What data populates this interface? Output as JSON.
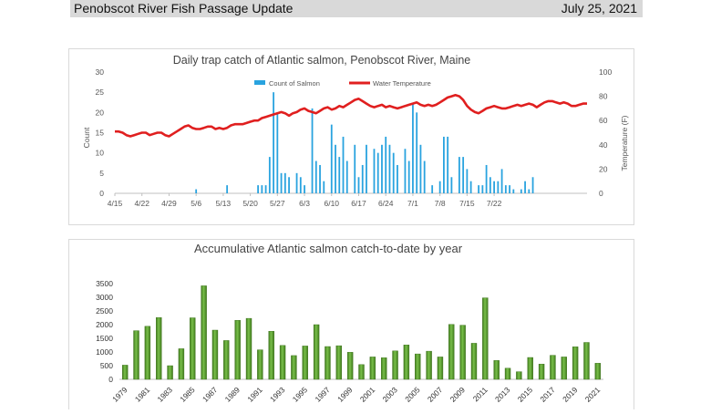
{
  "header": {
    "title": "Penobscot River Fish Passage Update",
    "date": "July 25, 2021"
  },
  "colors": {
    "salmon_bars": "#29a3df",
    "temperature_line": "#e01f1f",
    "yearly_bars": "#5a9e2f",
    "banner": "#d9d9d9"
  },
  "chart_data": [
    {
      "type": "bar",
      "title": "Daily trap catch of Atlantic salmon, Penobscot River, Maine",
      "ylabel": "Count",
      "y2label": "Temperature (F)",
      "ylim": [
        0,
        30
      ],
      "y2lim": [
        0,
        100
      ],
      "yticks": [
        "0",
        "5",
        "10",
        "15",
        "20",
        "25",
        "30"
      ],
      "y2ticks": [
        "0",
        "20",
        "40",
        "60",
        "80",
        "100"
      ],
      "xtick_labels": [
        "4/15",
        "4/22",
        "4/29",
        "5/6",
        "5/13",
        "5/20",
        "5/27",
        "6/3",
        "6/10",
        "6/17",
        "6/24",
        "7/1",
        "7/8",
        "7/15",
        "7/22"
      ],
      "legend": [
        "Count of Salmon",
        "Water Temperature"
      ],
      "legend_position": "top-center",
      "start_date": "4/15",
      "series": [
        {
          "name": "Count of Salmon",
          "kind": "bar",
          "values": [
            0,
            0,
            0,
            0,
            0,
            0,
            0,
            0,
            0,
            0,
            0,
            0,
            0,
            0,
            0,
            0,
            0,
            0,
            0,
            0,
            0,
            1,
            0,
            0,
            0,
            0,
            0,
            0,
            0,
            2,
            0,
            0,
            0,
            0,
            0,
            0,
            0,
            2,
            2,
            2,
            9,
            25,
            20,
            5,
            5,
            4,
            0,
            5,
            4,
            2,
            0,
            21,
            8,
            7,
            3,
            0,
            17,
            12,
            9,
            14,
            8,
            0,
            12,
            4,
            7,
            12,
            0,
            11,
            10,
            12,
            14,
            12,
            10,
            7,
            0,
            11,
            8,
            22,
            20,
            12,
            8,
            0,
            2,
            0,
            3,
            14,
            14,
            4,
            0,
            9,
            9,
            6,
            3,
            0,
            2,
            2,
            7,
            4,
            3,
            3,
            6,
            2,
            2,
            1,
            0,
            1,
            3,
            1,
            4
          ]
        },
        {
          "name": "Water Temperature",
          "kind": "line",
          "axis": "right",
          "values": [
            51,
            51,
            50,
            48,
            47,
            48,
            49,
            50,
            50,
            48,
            49,
            50,
            50,
            48,
            47,
            49,
            51,
            53,
            55,
            56,
            54,
            53,
            53,
            54,
            55,
            55,
            53,
            54,
            53,
            54,
            56,
            57,
            57,
            57,
            58,
            59,
            60,
            60,
            62,
            63,
            64,
            65,
            66,
            67,
            66,
            64,
            66,
            67,
            69,
            70,
            68,
            67,
            66,
            68,
            70,
            71,
            69,
            70,
            72,
            71,
            73,
            75,
            77,
            78,
            76,
            74,
            72,
            71,
            72,
            73,
            71,
            72,
            71,
            70,
            71,
            72,
            73,
            74,
            75,
            73,
            72,
            73,
            72,
            73,
            75,
            77,
            79,
            80,
            81,
            80,
            77,
            72,
            69,
            67,
            66,
            68,
            70,
            71,
            72,
            71,
            70,
            70,
            71,
            72,
            73,
            72,
            73,
            74,
            73,
            71,
            73,
            75,
            76,
            76,
            75,
            74,
            75,
            74,
            72,
            72,
            73,
            74,
            74
          ]
        }
      ]
    },
    {
      "type": "bar",
      "title": "Accumulative Atlantic salmon catch-to-date by year",
      "ylim": [
        0,
        3500
      ],
      "yticks": [
        "0",
        "500",
        "1000",
        "1500",
        "2000",
        "2500",
        "3000",
        "3500"
      ],
      "categories": [
        "1979",
        "1980",
        "1981",
        "1982",
        "1983",
        "1984",
        "1985",
        "1986",
        "1987",
        "1988",
        "1989",
        "1990",
        "1991",
        "1992",
        "1993",
        "1994",
        "1995",
        "1996",
        "1997",
        "1998",
        "1999",
        "2000",
        "2001",
        "2002",
        "2003",
        "2004",
        "2005",
        "2006",
        "2007",
        "2008",
        "2009",
        "2010",
        "2011",
        "2012",
        "2013",
        "2014",
        "2015",
        "2016",
        "2017",
        "2018",
        "2019",
        "2020",
        "2021"
      ],
      "xtick_labels": [
        "1979",
        "1981",
        "1983",
        "1985",
        "1987",
        "1989",
        "1991",
        "1993",
        "1995",
        "1997",
        "1999",
        "2001",
        "2003",
        "2005",
        "2007",
        "2009",
        "2011",
        "2013",
        "2015",
        "2017",
        "2019",
        "2021"
      ],
      "values": [
        520,
        1780,
        1940,
        2260,
        500,
        1120,
        2250,
        3420,
        1800,
        1420,
        2160,
        2230,
        1080,
        1760,
        1240,
        870,
        1220,
        2000,
        1200,
        1230,
        990,
        540,
        820,
        790,
        1040,
        1260,
        930,
        1030,
        820,
        2010,
        1980,
        1320,
        2980,
        690,
        410,
        280,
        800,
        560,
        880,
        820,
        1190,
        1350,
        590
      ]
    }
  ]
}
